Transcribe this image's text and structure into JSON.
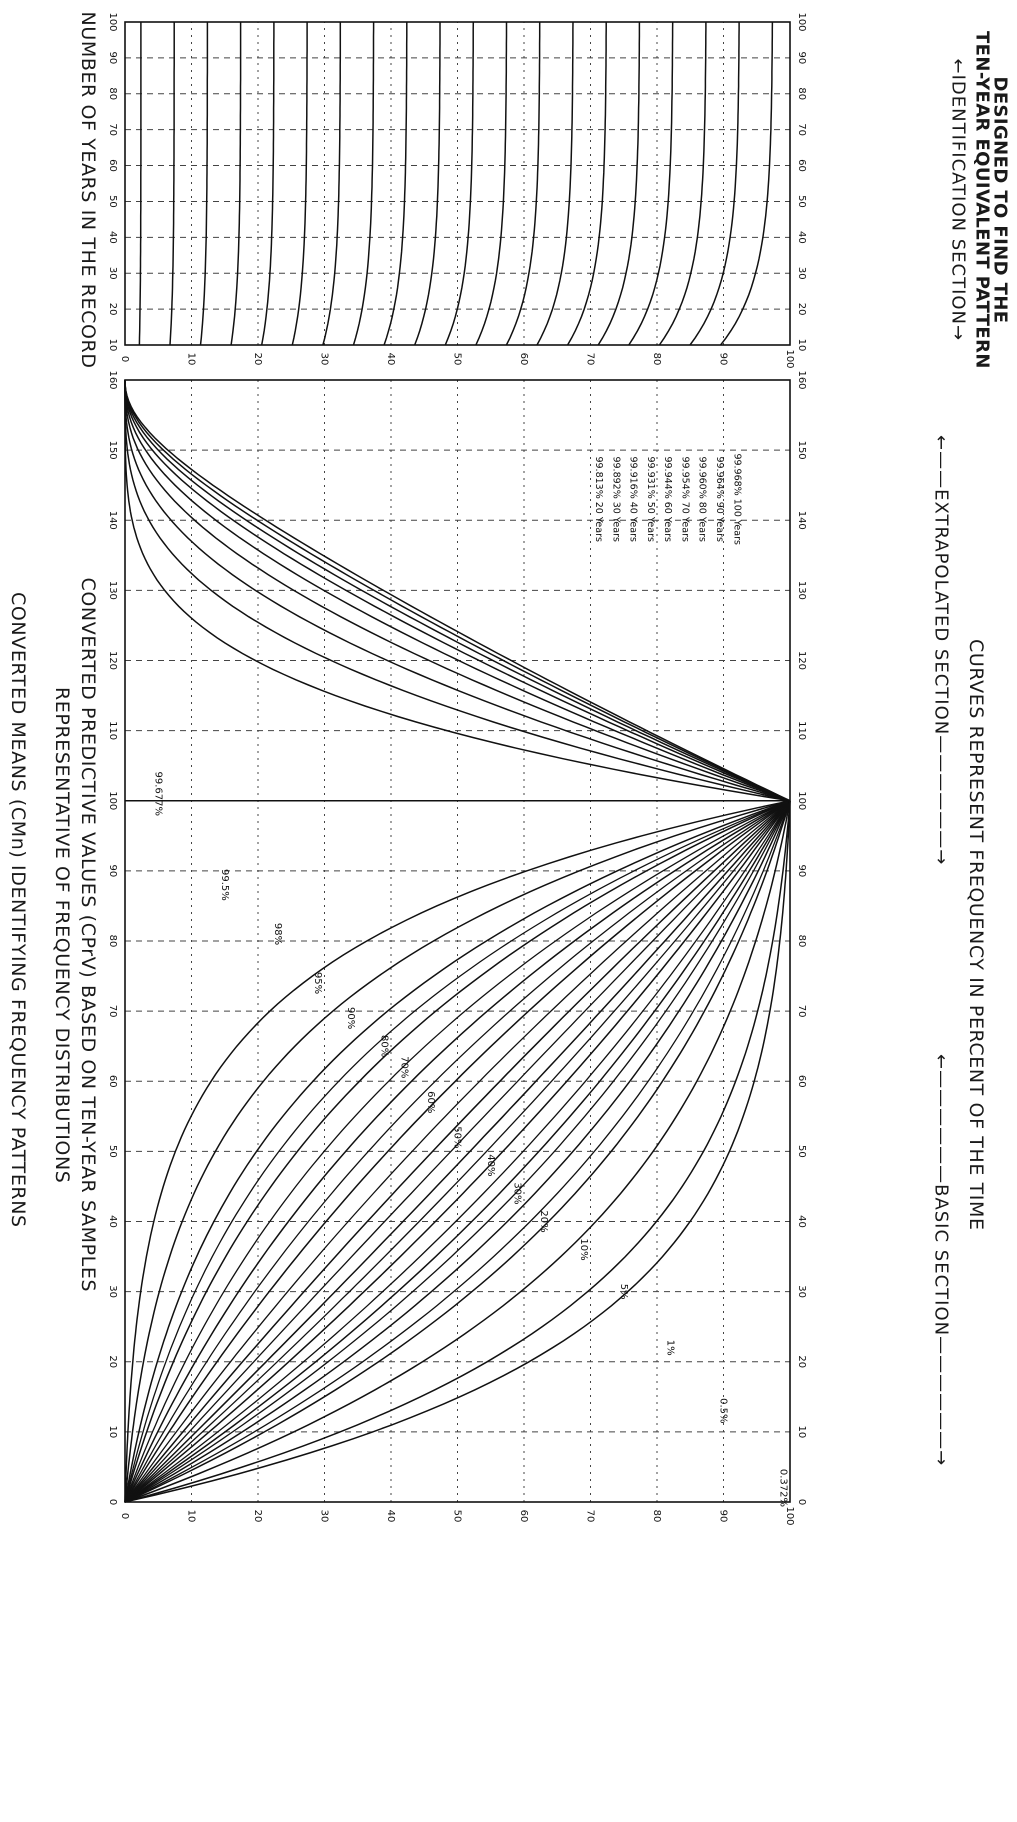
{
  "titles": {
    "identification_title_line1": "DESIGNED TO FIND THE",
    "identification_title_line2": "TEN-YEAR EQUIVALENT PATTERN",
    "curves_title": "CURVES REPRESENT FREQUENCY IN PERCENT OF THE TIME",
    "ylabel": "CONVERTED MEANS (CMn) IDENTIFYING FREQUENCY PATTERNS",
    "xlabel_line1": "CONVERTED PREDICTIVE VALUES (CPrV) BASED ON TEN-YEAR SAMPLES",
    "xlabel_line2": "REPRESENTATIVE OF FREQUENCY DISTRIBUTIONS",
    "years_label": "NUMBER OF YEARS IN THE RECORD"
  },
  "sections": {
    "basic": "BASIC SECTION",
    "extrapolated": "EXTRAPOLATED SECTION",
    "identification": "IDENTIFICATION SECTION"
  },
  "chart_data": [
    {
      "type": "line",
      "title": "CURVES REPRESENT FREQUENCY IN PERCENT OF THE TIME",
      "xlabel": "CONVERTED PREDICTIVE VALUES (CPrV) BASED ON TEN-YEAR SAMPLES",
      "ylabel": "CONVERTED MEANS (CMn) IDENTIFYING FREQUENCY PATTERNS",
      "xlim": [
        0,
        160
      ],
      "ylim": [
        0,
        100
      ],
      "xticks": [
        "0",
        "10",
        "20",
        "30",
        "40",
        "50",
        "60",
        "70",
        "80",
        "90",
        "100",
        "110",
        "120",
        "130",
        "140",
        "150",
        "160"
      ],
      "yticks": [
        "0",
        "10",
        "20",
        "30",
        "40",
        "50",
        "60",
        "70",
        "80",
        "90",
        "100"
      ],
      "grid": true,
      "basic_section": {
        "x_range": [
          0,
          100
        ],
        "series": [
          {
            "name": "0.5%",
            "k": -4.6
          },
          {
            "name": "1%",
            "k": -3.8
          },
          {
            "name": "5%",
            "k": -2.7
          },
          {
            "name": "10%",
            "k": -2.0
          },
          {
            "name": "20%",
            "k": -1.45
          },
          {
            "name": "30%",
            "k": -1.0
          },
          {
            "name": "40%",
            "k": -0.55
          },
          {
            "name": "50%",
            "k": -0.15
          },
          {
            "name": "60%",
            "k": 0.3
          },
          {
            "name": "70%",
            "k": 0.85
          },
          {
            "name": "80%",
            "k": 1.4
          },
          {
            "name": "90%",
            "k": 2.1
          },
          {
            "name": "95%",
            "k": 2.8
          },
          {
            "name": "98%",
            "k": 3.7
          },
          {
            "name": "99.5%",
            "k": 5.0
          }
        ],
        "unlabeled_k": [
          -1.75,
          -1.2,
          -0.8,
          -0.35,
          0.08,
          0.55,
          1.1,
          1.7,
          2.4
        ],
        "labels": [
          {
            "text": "0.372%",
            "x": 2,
            "y": 99
          },
          {
            "text": "0.5%",
            "x": 13,
            "y": 90
          },
          {
            "text": "1%",
            "x": 22,
            "y": 82
          },
          {
            "text": "5%",
            "x": 30,
            "y": 75
          },
          {
            "text": "10%",
            "x": 36,
            "y": 69
          },
          {
            "text": "20%",
            "x": 40,
            "y": 63
          },
          {
            "text": "30%",
            "x": 44,
            "y": 59
          },
          {
            "text": "40%",
            "x": 48,
            "y": 55
          },
          {
            "text": "50%",
            "x": 52,
            "y": 50
          },
          {
            "text": "60%",
            "x": 57,
            "y": 46
          },
          {
            "text": "70%",
            "x": 62,
            "y": 42
          },
          {
            "text": "80%",
            "x": 65,
            "y": 39
          },
          {
            "text": "90%",
            "x": 69,
            "y": 34
          },
          {
            "text": "95%",
            "x": 74,
            "y": 29
          },
          {
            "text": "98%",
            "x": 81,
            "y": 23
          },
          {
            "text": "99.5%",
            "x": 88,
            "y": 15
          },
          {
            "text": "99.677%",
            "x": 101,
            "y": 5
          }
        ]
      },
      "extrapolated_section": {
        "x_range": [
          100,
          160
        ],
        "series": [
          {
            "name": "99.677%",
            "k": 0.0
          },
          {
            "name": "99.813% 20 Years",
            "k": 0.22
          },
          {
            "name": "99.892% 30 Years",
            "k": 0.42
          },
          {
            "name": "99.916% 40 Years",
            "k": 0.58
          },
          {
            "name": "99.931% 50 Years",
            "k": 0.72
          },
          {
            "name": "99.944% 60 Years",
            "k": 0.84
          },
          {
            "name": "99.954% 70 Years",
            "k": 0.94
          },
          {
            "name": "99.960% 80 Years",
            "k": 1.02
          },
          {
            "name": "99.964% 90 Years",
            "k": 1.09
          },
          {
            "name": "99.968% 100 Years",
            "k": 1.15
          }
        ],
        "legend": [
          "99.968% 100 Years",
          "99.964% 90 Years",
          "99.960% 80 Years",
          "99.954% 70 Years",
          "99.944% 60 Years",
          "99.931% 50 Years",
          "99.916% 40 Years",
          "99.892% 30 Years",
          "99.813% 20 Years"
        ],
        "legend_placement": "upper-right"
      }
    },
    {
      "type": "line",
      "title": "IDENTIFICATION SECTION",
      "xlabel": "NUMBER OF YEARS IN THE RECORD",
      "ylabel": "",
      "xlim": [
        10,
        100
      ],
      "ylim": [
        0,
        100
      ],
      "xticks": [
        "10",
        "20",
        "30",
        "40",
        "50",
        "60",
        "70",
        "80",
        "90",
        "100"
      ],
      "yticks": [
        "0",
        "10",
        "20",
        "30",
        "40",
        "50",
        "60",
        "70",
        "80",
        "90",
        "100"
      ],
      "grid": true,
      "curve_levels": [
        3,
        8,
        13,
        18,
        23,
        28,
        33,
        38,
        43,
        48,
        53,
        58,
        63,
        68,
        73,
        78,
        83,
        88,
        93,
        98
      ]
    }
  ]
}
